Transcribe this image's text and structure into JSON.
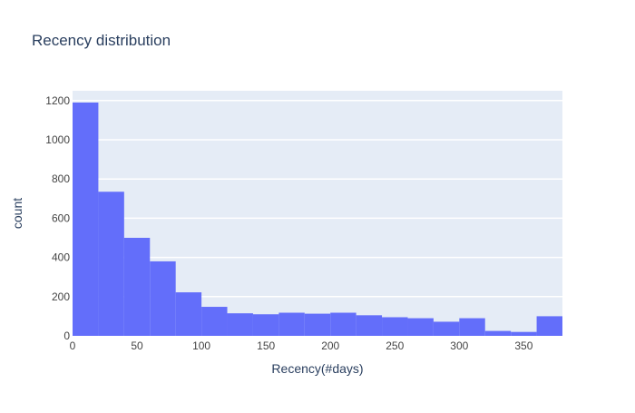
{
  "chart_data": {
    "type": "bar",
    "title": "Recency distribution",
    "xlabel": "Recency(#days)",
    "ylabel": "count",
    "xlim": [
      0,
      380
    ],
    "ylim": [
      0,
      1250
    ],
    "grid": true,
    "bin_width": 20,
    "bins": [
      {
        "start": 0,
        "count": 1190
      },
      {
        "start": 20,
        "count": 735
      },
      {
        "start": 40,
        "count": 500
      },
      {
        "start": 60,
        "count": 380
      },
      {
        "start": 80,
        "count": 222
      },
      {
        "start": 100,
        "count": 148
      },
      {
        "start": 120,
        "count": 115
      },
      {
        "start": 140,
        "count": 110
      },
      {
        "start": 160,
        "count": 118
      },
      {
        "start": 180,
        "count": 113
      },
      {
        "start": 200,
        "count": 118
      },
      {
        "start": 220,
        "count": 105
      },
      {
        "start": 240,
        "count": 95
      },
      {
        "start": 260,
        "count": 90
      },
      {
        "start": 280,
        "count": 72
      },
      {
        "start": 300,
        "count": 90
      },
      {
        "start": 320,
        "count": 25
      },
      {
        "start": 340,
        "count": 20
      },
      {
        "start": 360,
        "count": 100
      }
    ],
    "xticks": [
      0,
      50,
      100,
      150,
      200,
      250,
      300,
      350
    ],
    "yticks": [
      0,
      200,
      400,
      600,
      800,
      1000,
      1200
    ]
  },
  "colors": {
    "bar": "#636efa",
    "plot_bg": "#e5ecf6",
    "grid": "#ffffff",
    "text": "#2a3f5f",
    "tick_text": "#444444"
  }
}
